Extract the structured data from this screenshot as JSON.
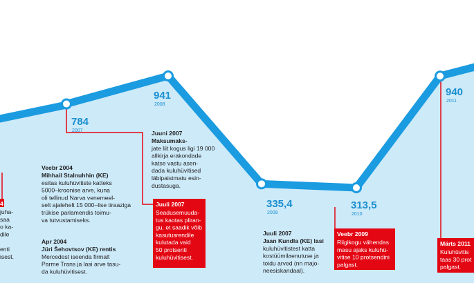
{
  "chart_data": {
    "type": "line",
    "categories": [
      "2007",
      "2008",
      "2009",
      "2010",
      "2011"
    ],
    "values": [
      784,
      941,
      335.4,
      313.5,
      940
    ],
    "value_labels": [
      "784",
      "941",
      "335,4",
      "313,5",
      "940"
    ],
    "color": "#1b9be0",
    "annotations": [
      {
        "date": "Veebr 2004",
        "lines": [
          "Mihhail Stalnuhhin (KE)",
          "esitas kuluhüvitiste katteks",
          "5000–kroonise arve, kuna",
          "oli tellinud Narva venemeel-",
          "selt ajalehelt 15 000–lise tiraaziga",
          "trükise parlamendis toimu-",
          "va tutvustamiseks."
        ]
      },
      {
        "date": "Apr 2004",
        "lines": [
          "Jüri Šehovtsov (KE) rentis",
          "Mercedest iseenda firmalt",
          "Parme Trans ja lasi arve tasu-",
          "da kuluhüvitisest."
        ]
      },
      {
        "date": "Juuni 2007",
        "lines": [
          "Maksumaks-",
          "jate liit kogus ligi 19 000",
          "allkirja erakondade",
          "katse vastu asen-",
          "dada kuluhüvitised",
          "läbipaistmatu esin-",
          "dustasuga."
        ]
      },
      {
        "date": "Juuli 2007",
        "lines": [
          "Jaan Kundla (KE) lasi",
          "kuluhüvitistest katta",
          "kostüümilaenutuse ja",
          "toidu arved (nn majo-",
          "neesiskandaal)."
        ]
      }
    ],
    "highlights": [
      {
        "date": "4",
        "lines": [
          "juha-",
          "saa",
          "o ka-",
          "dile",
          "",
          "enti",
          "isest."
        ]
      },
      {
        "date": "Juuli 2007",
        "lines": [
          "Seadusemuuda-",
          "tus kaotas pliran-",
          "gu, et saadik võib",
          "kasutusrendile",
          "kulutada vaid",
          "50 protsenti",
          "kuluhüvitisest."
        ]
      },
      {
        "date": "Veebr 2009",
        "lines": [
          "Riigikogu vähendas",
          "masu ajaks kuluhü-",
          "vitise 10 protsendini",
          "palgast."
        ]
      },
      {
        "date": "Märts 2011",
        "lines": [
          "Kuluhüvitis",
          "taas 30 prot",
          "palgast."
        ]
      }
    ]
  }
}
